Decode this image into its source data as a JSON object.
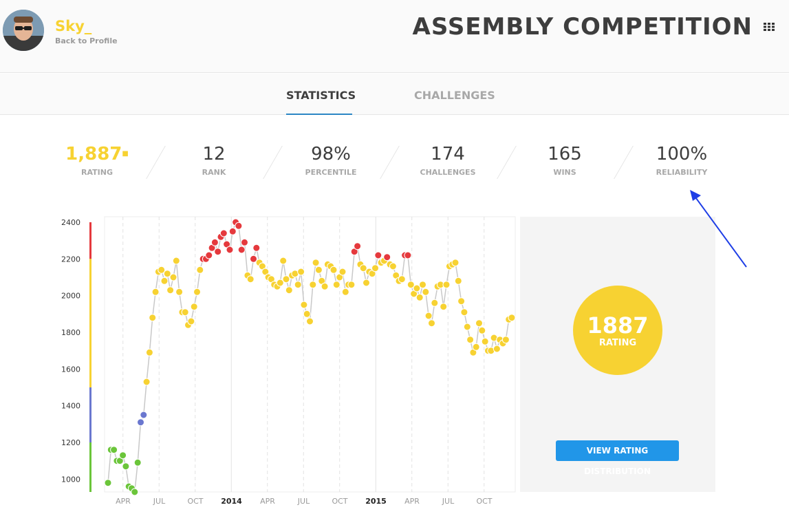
{
  "header": {
    "username": "Sky_",
    "back_link": "Back to Profile",
    "title": "ASSEMBLY COMPETITION",
    "menu_icon": "grid-icon"
  },
  "tabs": [
    {
      "label": "STATISTICS",
      "active": true
    },
    {
      "label": "CHALLENGES",
      "active": false
    }
  ],
  "stats": [
    {
      "value": "1,887",
      "label": "RATING",
      "highlight": true
    },
    {
      "value": "12",
      "label": "RANK"
    },
    {
      "value": "98%",
      "label": "PERCENTILE"
    },
    {
      "value": "174",
      "label": "CHALLENGES"
    },
    {
      "value": "165",
      "label": "WINS"
    },
    {
      "value": "100%",
      "label": "RELIABILITY"
    }
  ],
  "rating_panel": {
    "value": "1887",
    "label": "RATING",
    "button_label": "VIEW RATING DISTRIBUTION"
  },
  "colors": {
    "yellow": "#f7d232",
    "red": "#e5393d",
    "blue": "#6a77cf",
    "green": "#6bc53a",
    "accent": "#2196e8"
  },
  "chart_data": {
    "type": "scatter",
    "y_ticks": [
      "2400",
      "2200",
      "2000",
      "1800",
      "1600",
      "1400",
      "1200",
      "1000"
    ],
    "x_ticks": [
      "APR",
      "JUL",
      "OCT",
      "2014",
      "APR",
      "JUL",
      "OCT",
      "2015",
      "APR",
      "JUL",
      "OCT"
    ],
    "ylim": [
      900,
      2400
    ],
    "series": [
      {
        "values": [
          980,
          1160,
          1160,
          1100,
          1100,
          1130,
          1070,
          960,
          950,
          910,
          1090,
          1310,
          1350,
          1530,
          1690,
          1880,
          2020,
          2130,
          2140,
          2080,
          2120,
          2030,
          2100,
          2190,
          2020,
          1910,
          1910,
          1840,
          1860,
          1940,
          2020,
          2140,
          2200,
          2200,
          2220,
          2260,
          2290,
          2240,
          2320,
          2340,
          2280,
          2250,
          2350,
          2400,
          2380,
          2250,
          2290,
          2110,
          2090,
          2200,
          2260,
          2180,
          2160,
          2130,
          2100,
          2090,
          2060,
          2050,
          2070,
          2190,
          2090,
          2030,
          2110,
          2120,
          2060,
          2130,
          1950,
          1900,
          1860,
          2060,
          2180,
          2140,
          2080,
          2050,
          2170,
          2160,
          2140,
          2060,
          2100,
          2130,
          2020,
          2060,
          2060,
          2240,
          2270,
          2170,
          2150,
          2070,
          2130,
          2120,
          2150,
          2220,
          2180,
          2190,
          2210,
          2170,
          2160,
          2110,
          2080,
          2090,
          2220,
          2220,
          2060,
          2010,
          2040,
          1990,
          2060,
          2020,
          1890,
          1850,
          1960,
          2050,
          2060,
          1940,
          2060,
          2160,
          2170,
          2180,
          2080,
          1970,
          1910,
          1830,
          1760,
          1690,
          1720,
          1850,
          1810,
          1750,
          1700,
          1700,
          1770,
          1710,
          1760,
          1740,
          1760,
          1870,
          1880
        ]
      }
    ],
    "bands": [
      {
        "from": 2200,
        "to": 2400,
        "color": "red"
      },
      {
        "from": 1500,
        "to": 2200,
        "color": "yellow"
      },
      {
        "from": 1200,
        "to": 1500,
        "color": "blue"
      },
      {
        "from": 900,
        "to": 1200,
        "color": "green"
      }
    ],
    "grid": true
  }
}
